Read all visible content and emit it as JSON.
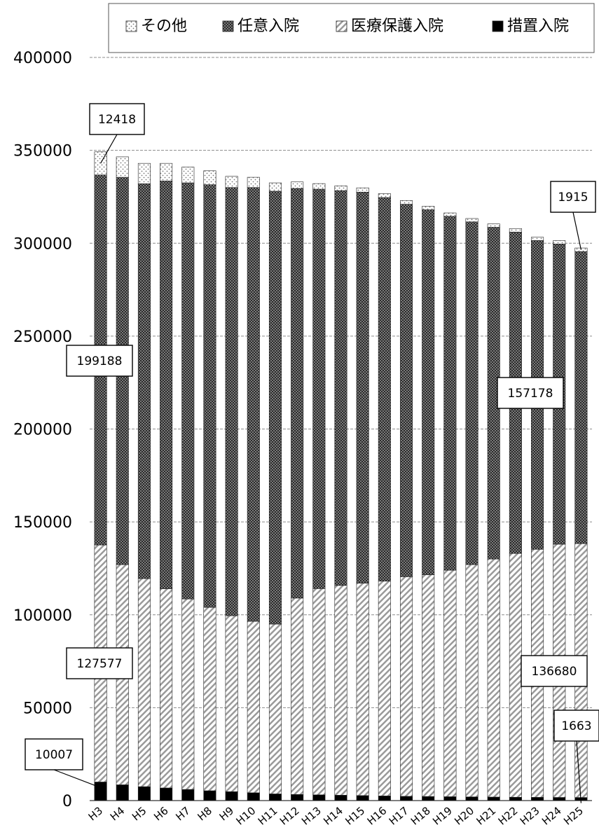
{
  "chart_data": {
    "type": "bar",
    "stacked": true,
    "title": "",
    "xlabel": "",
    "ylabel": "",
    "ylim": [
      0,
      400000
    ],
    "yticks": [
      0,
      50000,
      100000,
      150000,
      200000,
      250000,
      300000,
      350000,
      400000
    ],
    "grid": true,
    "legend_position": "top",
    "categories": [
      "H3",
      "H4",
      "H5",
      "H6",
      "H7",
      "H8",
      "H9",
      "H10",
      "H11",
      "H12",
      "H13",
      "H14",
      "H15",
      "H16",
      "H17",
      "H18",
      "H19",
      "H20",
      "H21",
      "H22",
      "H23",
      "H24",
      "H25"
    ],
    "series": [
      {
        "name": "措置入院",
        "pattern": "solid",
        "color": "#000000",
        "values": [
          10007,
          8500,
          7500,
          6800,
          6000,
          5300,
          4800,
          4200,
          3600,
          3300,
          3100,
          2900,
          2700,
          2500,
          2300,
          2200,
          2100,
          2000,
          1900,
          1800,
          1750,
          1700,
          1663
        ]
      },
      {
        "name": "医療保護入院",
        "pattern": "diagonal-hatch",
        "color": "#c8c8c8",
        "values": [
          127577,
          118500,
          112000,
          107200,
          102500,
          98700,
          94700,
          92300,
          91400,
          105700,
          111000,
          112900,
          114300,
          115600,
          118200,
          119300,
          121900,
          125000,
          128100,
          131200,
          133500,
          136300,
          136680
        ]
      },
      {
        "name": "任意入院",
        "pattern": "dark-check",
        "color": "#444444",
        "values": [
          199188,
          208500,
          212500,
          219500,
          224000,
          227500,
          230500,
          233500,
          233000,
          220500,
          215000,
          212500,
          210500,
          206500,
          200500,
          196500,
          190500,
          184500,
          178600,
          173000,
          166200,
          161600,
          157178
        ]
      },
      {
        "name": "その他",
        "pattern": "dots",
        "color": "#e6e6e6",
        "values": [
          12418,
          11000,
          11000,
          9500,
          8500,
          7500,
          6000,
          5500,
          4500,
          3500,
          3000,
          2600,
          2300,
          2100,
          2000,
          1900,
          1800,
          1800,
          1800,
          1900,
          1800,
          1800,
          1915
        ]
      }
    ],
    "annotations": [
      {
        "text": "12418",
        "category": "H3",
        "series": "その他"
      },
      {
        "text": "199188",
        "category": "H3",
        "series": "任意入院"
      },
      {
        "text": "127577",
        "category": "H3",
        "series": "医療保護入院"
      },
      {
        "text": "10007",
        "category": "H3",
        "series": "措置入院"
      },
      {
        "text": "1915",
        "category": "H25",
        "series": "その他"
      },
      {
        "text": "157178",
        "category": "H25",
        "series": "任意入院"
      },
      {
        "text": "136680",
        "category": "H25",
        "series": "医療保護入院"
      },
      {
        "text": "1663",
        "category": "H25",
        "series": "措置入院"
      }
    ],
    "legend": [
      "その他",
      "任意入院",
      "医療保護入院",
      "措置入院"
    ]
  }
}
